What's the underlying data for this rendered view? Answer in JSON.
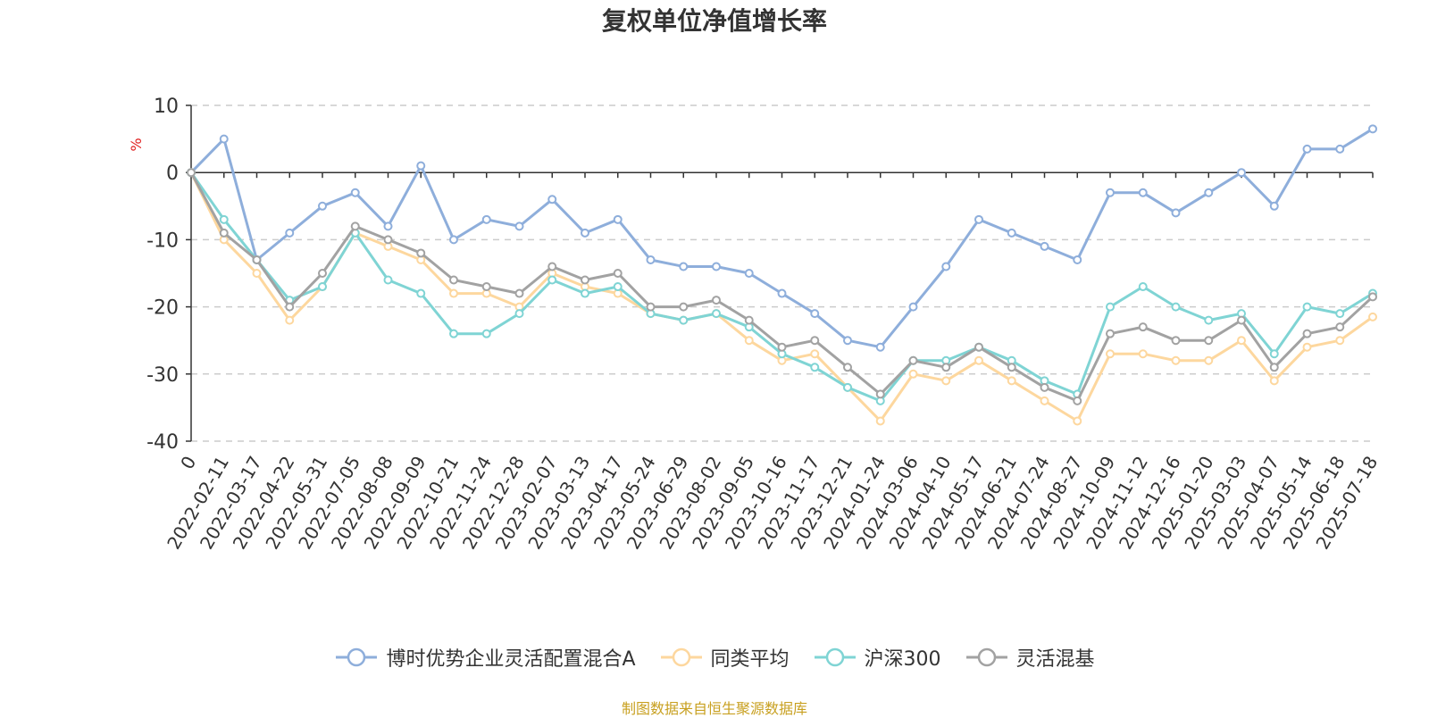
{
  "chart_data": {
    "type": "line",
    "title": "复权单位净值增长率",
    "ylabel": "%",
    "ylim": [
      -40,
      10
    ],
    "yticks": [
      10,
      0,
      -10,
      -20,
      -30,
      -40
    ],
    "grid": true,
    "legend_position": "bottom",
    "x_labels": [
      "0",
      "2022-02-11",
      "2022-03-17",
      "2022-04-22",
      "2022-05-31",
      "2022-07-05",
      "2022-08-08",
      "2022-09-09",
      "2022-10-21",
      "2022-11-24",
      "2022-12-28",
      "2023-02-07",
      "2023-03-13",
      "2023-04-17",
      "2023-05-24",
      "2023-06-29",
      "2023-08-02",
      "2023-09-05",
      "2023-10-16",
      "2023-11-17",
      "2023-12-21",
      "2024-01-24",
      "2024-03-06",
      "2024-04-10",
      "2024-05-17",
      "2024-06-21",
      "2024-07-24",
      "2024-08-27",
      "2024-10-09",
      "2024-11-12",
      "2024-12-16",
      "2025-01-20",
      "2025-03-03",
      "2025-04-07",
      "2025-05-14",
      "2025-06-18",
      "2025-07-18"
    ],
    "series": [
      {
        "name": "博时优势企业灵活配置混合A",
        "color": "#8eaedb",
        "values": [
          0,
          5.0,
          -13.0,
          -9.0,
          -5.0,
          -3.0,
          -8.0,
          1.0,
          -10.0,
          -7.0,
          -8.0,
          -4.0,
          -9.0,
          -7.0,
          -13.0,
          -14.0,
          -14.0,
          -15.0,
          -18.0,
          -21.0,
          -25.0,
          -26.0,
          -20.0,
          -14.0,
          -7.0,
          -9.0,
          -11.0,
          -13.0,
          -3.0,
          -3.0,
          -6.0,
          -3.0,
          0.0,
          -5.0,
          3.5,
          3.5,
          6.5
        ]
      },
      {
        "name": "同类平均",
        "color": "#fdd79e",
        "values": [
          0,
          -10.0,
          -15.0,
          -22.0,
          -17.0,
          -9.0,
          -11.0,
          -13.0,
          -18.0,
          -18.0,
          -20.0,
          -15.0,
          -17.0,
          -18.0,
          -21.0,
          -22.0,
          -21.0,
          -25.0,
          -28.0,
          -27.0,
          -32.0,
          -37.0,
          -30.0,
          -31.0,
          -28.0,
          -31.0,
          -34.0,
          -37.0,
          -27.0,
          -27.0,
          -28.0,
          -28.0,
          -25.0,
          -31.0,
          -26.0,
          -25.0,
          -21.5
        ]
      },
      {
        "name": "沪深300",
        "color": "#7fd4d4",
        "values": [
          0,
          -7.0,
          -13.0,
          -19.0,
          -17.0,
          -9.0,
          -16.0,
          -18.0,
          -24.0,
          -24.0,
          -21.0,
          -16.0,
          -18.0,
          -17.0,
          -21.0,
          -22.0,
          -21.0,
          -23.0,
          -27.0,
          -29.0,
          -32.0,
          -34.0,
          -28.0,
          -28.0,
          -26.0,
          -28.0,
          -31.0,
          -33.0,
          -20.0,
          -17.0,
          -20.0,
          -22.0,
          -21.0,
          -27.0,
          -20.0,
          -21.0,
          -18.0
        ]
      },
      {
        "name": "灵活混基",
        "color": "#a2a2a2",
        "values": [
          0,
          -9.0,
          -13.0,
          -20.0,
          -15.0,
          -8.0,
          -10.0,
          -12.0,
          -16.0,
          -17.0,
          -18.0,
          -14.0,
          -16.0,
          -15.0,
          -20.0,
          -20.0,
          -19.0,
          -22.0,
          -26.0,
          -25.0,
          -29.0,
          -33.0,
          -28.0,
          -29.0,
          -26.0,
          -29.0,
          -32.0,
          -34.0,
          -24.0,
          -23.0,
          -25.0,
          -25.0,
          -22.0,
          -29.0,
          -24.0,
          -23.0,
          -18.5
        ]
      }
    ]
  },
  "source_text": "制图数据来自恒生聚源数据库"
}
